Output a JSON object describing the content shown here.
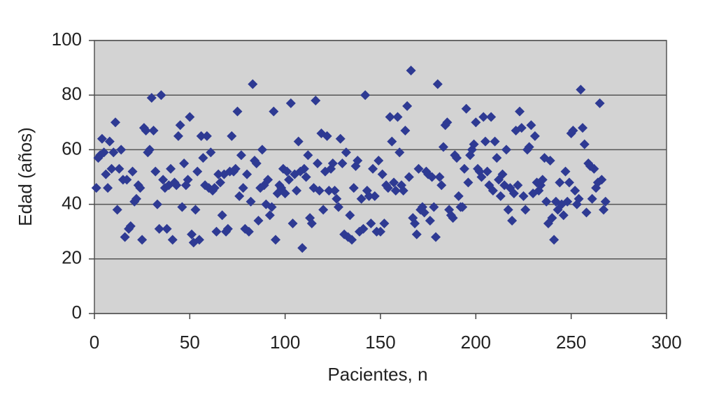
{
  "chart_data": {
    "type": "scatter",
    "x_label": "Pacientes, n",
    "y_label": "Edad (años)",
    "color": "#2e3a93",
    "background": "#d3d3d3",
    "grid": true,
    "marker": "diamond",
    "xlim": [
      0,
      300
    ],
    "xticks": [
      0,
      50,
      100,
      150,
      200,
      250,
      300
    ],
    "ylim": [
      0,
      100
    ],
    "yticks": [
      0,
      20,
      40,
      60,
      80,
      100
    ],
    "x": [
      1,
      2,
      3,
      4,
      5,
      6,
      7,
      8,
      9,
      10,
      11,
      12,
      13,
      14,
      15,
      16,
      17,
      18,
      19,
      20,
      21,
      22,
      23,
      24,
      25,
      26,
      27,
      28,
      29,
      30,
      31,
      32,
      33,
      34,
      35,
      36,
      37,
      38,
      39,
      40,
      41,
      42,
      43,
      44,
      45,
      46,
      47,
      48,
      49,
      50,
      51,
      52,
      53,
      54,
      55,
      56,
      57,
      58,
      59,
      60,
      61,
      62,
      63,
      64,
      65,
      66,
      67,
      68,
      69,
      70,
      71,
      72,
      73,
      74,
      75,
      76,
      77,
      78,
      79,
      80,
      81,
      82,
      83,
      84,
      85,
      86,
      87,
      88,
      89,
      90,
      91,
      92,
      93,
      94,
      95,
      96,
      97,
      98,
      99,
      100,
      101,
      102,
      103,
      104,
      105,
      106,
      107,
      108,
      109,
      110,
      111,
      112,
      113,
      114,
      115,
      116,
      117,
      118,
      119,
      120,
      121,
      122,
      123,
      124,
      125,
      126,
      127,
      128,
      129,
      130,
      131,
      132,
      133,
      134,
      135,
      136,
      137,
      138,
      139,
      140,
      141,
      142,
      143,
      144,
      145,
      146,
      147,
      148,
      149,
      150,
      151,
      152,
      153,
      154,
      155,
      156,
      157,
      158,
      159,
      160,
      161,
      162,
      163,
      164,
      165,
      166,
      167,
      168,
      169,
      170,
      171,
      172,
      173,
      174,
      175,
      176,
      177,
      178,
      179,
      180,
      181,
      182,
      183,
      184,
      185,
      186,
      187,
      188,
      189,
      190,
      191,
      192,
      193,
      194,
      195,
      196,
      197,
      198,
      199,
      200,
      201,
      202,
      203,
      204,
      205,
      206,
      207,
      208,
      209,
      210,
      211,
      212,
      213,
      214,
      215,
      216,
      217,
      218,
      219,
      220,
      221,
      222,
      223,
      224,
      225,
      226,
      227,
      228,
      229,
      230,
      231,
      232,
      233,
      234,
      235,
      236,
      237,
      238,
      239,
      240,
      241,
      242,
      243,
      244,
      245,
      246,
      247,
      248,
      249,
      250,
      251,
      252,
      253,
      254,
      255,
      256,
      257,
      258,
      259,
      260,
      261,
      262,
      263,
      264,
      265,
      266,
      267,
      268
    ],
    "values": [
      46,
      57,
      58,
      64,
      59,
      51,
      46,
      63,
      53,
      59,
      70,
      38,
      53,
      60,
      49,
      28,
      49,
      31,
      32,
      52,
      41,
      42,
      47,
      46,
      27,
      68,
      67,
      59,
      60,
      79,
      67,
      52,
      40,
      31,
      80,
      49,
      46,
      31,
      47,
      53,
      27,
      48,
      47,
      65,
      69,
      39,
      55,
      47,
      49,
      72,
      29,
      26,
      38,
      52,
      27,
      65,
      57,
      47,
      65,
      46,
      59,
      45,
      46,
      30,
      51,
      48,
      36,
      51,
      30,
      31,
      52,
      65,
      52,
      53,
      74,
      43,
      58,
      46,
      31,
      51,
      30,
      41,
      84,
      56,
      55,
      34,
      46,
      60,
      47,
      40,
      49,
      36,
      39,
      74,
      27,
      44,
      47,
      46,
      53,
      44,
      52,
      49,
      77,
      33,
      51,
      45,
      63,
      52,
      24,
      53,
      50,
      58,
      35,
      33,
      46,
      78,
      55,
      45,
      66,
      38,
      52,
      65,
      45,
      53,
      55,
      45,
      42,
      39,
      64,
      55,
      29,
      59,
      28,
      36,
      27,
      46,
      54,
      56,
      30,
      42,
      31,
      80,
      45,
      43,
      33,
      53,
      43,
      30,
      56,
      30,
      51,
      33,
      47,
      46,
      72,
      63,
      48,
      45,
      72,
      59,
      47,
      45,
      67,
      76,
      50,
      89,
      35,
      33,
      29,
      53,
      38,
      39,
      37,
      52,
      51,
      34,
      50,
      39,
      28,
      84,
      50,
      47,
      61,
      69,
      70,
      38,
      36,
      35,
      58,
      57,
      43,
      39,
      39,
      53,
      75,
      48,
      58,
      60,
      62,
      70,
      53,
      52,
      50,
      72,
      63,
      52,
      47,
      72,
      45,
      63,
      57,
      49,
      43,
      51,
      47,
      60,
      38,
      46,
      34,
      44,
      67,
      47,
      74,
      68,
      43,
      38,
      60,
      61,
      69,
      44,
      65,
      48,
      45,
      47,
      49,
      57,
      41,
      33,
      56,
      35,
      27,
      41,
      38,
      48,
      40,
      36,
      52,
      41,
      48,
      66,
      67,
      45,
      40,
      42,
      82,
      68,
      62,
      37,
      55,
      54,
      42,
      53,
      46,
      48,
      77,
      49,
      38,
      41
    ]
  }
}
